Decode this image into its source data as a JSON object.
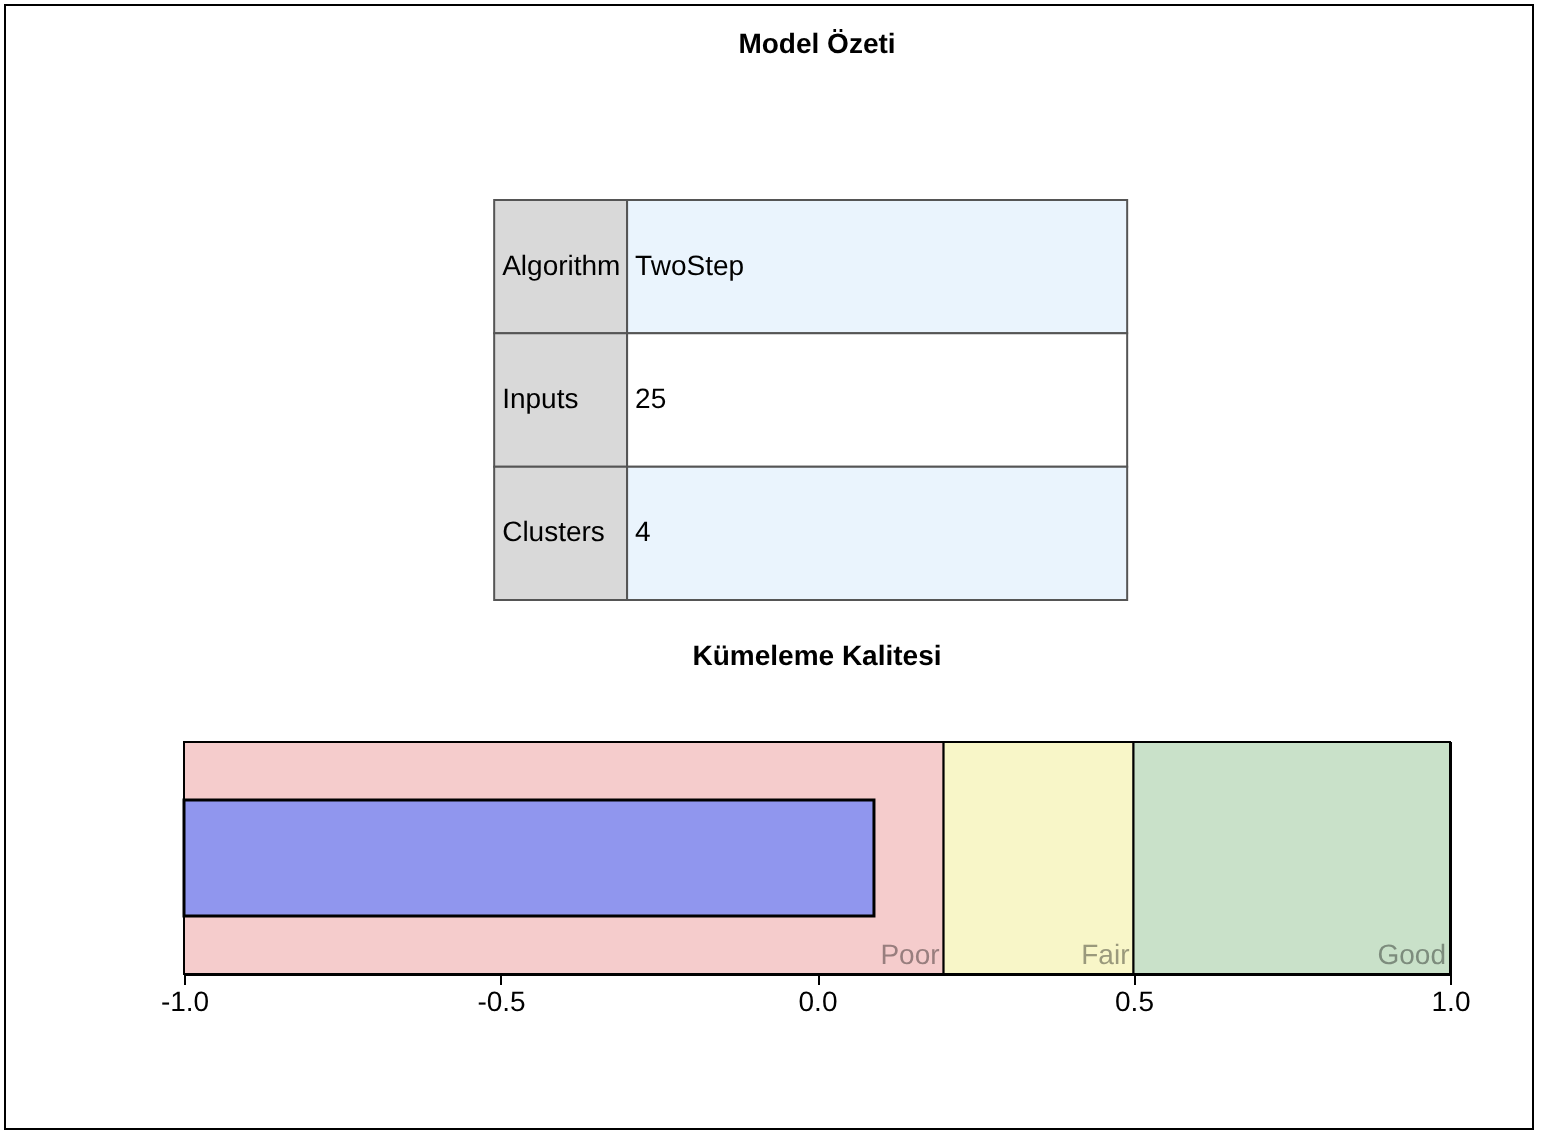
{
  "chart_data": [
    {
      "type": "other",
      "title": "Model Özeti",
      "categories": [
        "Algorithm",
        "Inputs",
        "Clusters"
      ],
      "value_labels": [
        "TwoStep",
        "25",
        "4"
      ]
    },
    {
      "type": "bar",
      "title": "Kümeleme Kalitesi",
      "orientation": "horizontal",
      "categories": [
        null
      ],
      "base": [
        -1.0
      ],
      "values": [
        1.09
      ],
      "color": "#9096ee",
      "xlim": [
        -1.0,
        1.0
      ],
      "xticks": [
        {
          "value": -1.0,
          "label": "-1.0"
        },
        {
          "value": -0.5,
          "label": "-0.5"
        },
        {
          "value": 0,
          "label": "0.0"
        },
        {
          "value": 0.5,
          "label": "0.5"
        },
        {
          "value": 1.0,
          "label": "1.0"
        }
      ],
      "grid": false,
      "bands": [
        {
          "axis": "x",
          "from": -1.0,
          "to": 0.2,
          "label": "Poor",
          "color": "#f5cccc"
        },
        {
          "axis": "x",
          "from": 0.2,
          "to": 0.5,
          "label": "Fair",
          "color": "#f8f6c8"
        },
        {
          "axis": "x",
          "from": 0.5,
          "to": 1.0,
          "label": "Good",
          "color": "#c9e1c9"
        }
      ]
    }
  ]
}
